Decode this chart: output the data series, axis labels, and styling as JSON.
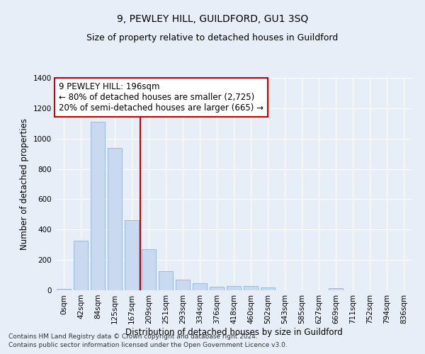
{
  "title": "9, PEWLEY HILL, GUILDFORD, GU1 3SQ",
  "subtitle": "Size of property relative to detached houses in Guildford",
  "xlabel": "Distribution of detached houses by size in Guildford",
  "ylabel": "Number of detached properties",
  "footer_line1": "Contains HM Land Registry data © Crown copyright and database right 2024.",
  "footer_line2": "Contains public sector information licensed under the Open Government Licence v3.0.",
  "categories": [
    "0sqm",
    "42sqm",
    "84sqm",
    "125sqm",
    "167sqm",
    "209sqm",
    "251sqm",
    "293sqm",
    "334sqm",
    "376sqm",
    "418sqm",
    "460sqm",
    "502sqm",
    "543sqm",
    "585sqm",
    "627sqm",
    "669sqm",
    "711sqm",
    "752sqm",
    "794sqm",
    "836sqm"
  ],
  "values": [
    8,
    325,
    1112,
    940,
    460,
    270,
    125,
    70,
    45,
    25,
    28,
    28,
    18,
    0,
    0,
    0,
    12,
    0,
    0,
    0,
    0
  ],
  "bar_color": "#c8d9f0",
  "bar_edge_color": "#9ab8d8",
  "vline_x_idx": 4,
  "vline_color": "#cc0000",
  "annotation_box_text": "9 PEWLEY HILL: 196sqm\n← 80% of detached houses are smaller (2,725)\n20% of semi-detached houses are larger (665) →",
  "annotation_fontsize": 8.5,
  "ylim": [
    0,
    1400
  ],
  "yticks": [
    0,
    200,
    400,
    600,
    800,
    1000,
    1200,
    1400
  ],
  "bg_color": "#e8eef8",
  "plot_bg_color": "#e8eef8",
  "grid_color": "#ffffff",
  "title_fontsize": 10,
  "subtitle_fontsize": 9,
  "xlabel_fontsize": 8.5,
  "ylabel_fontsize": 8.5,
  "tick_fontsize": 7.5,
  "footer_fontsize": 6.5
}
